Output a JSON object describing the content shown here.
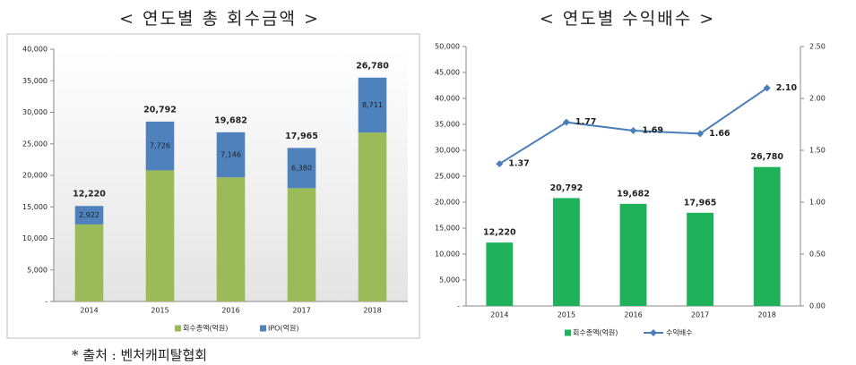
{
  "chart_data": [
    {
      "type": "bar",
      "stacked": true,
      "title": "< 연도별 총 회수금액 >",
      "categories": [
        "2014",
        "2015",
        "2016",
        "2017",
        "2018"
      ],
      "series": [
        {
          "name": "회수총액(억원)",
          "color": "#9bbb59",
          "values": [
            12220,
            20792,
            19682,
            17965,
            26780
          ],
          "value_labels": [
            "12,220",
            "20,792",
            "19,682",
            "17,965",
            "26,780"
          ]
        },
        {
          "name": "IPO(억원)",
          "color": "#4f81bd",
          "values": [
            2922,
            7726,
            7146,
            6380,
            8711
          ],
          "value_labels": [
            "2,922",
            "7,726",
            "7,146",
            "6,380",
            "8,711"
          ]
        }
      ],
      "ylim": [
        0,
        40000
      ],
      "yticks": [
        {
          "value": 0,
          "label": "-"
        },
        {
          "value": 5000,
          "label": "5,000"
        },
        {
          "value": 10000,
          "label": "10,000"
        },
        {
          "value": 15000,
          "label": "15,000"
        },
        {
          "value": 20000,
          "label": "20,000"
        },
        {
          "value": 25000,
          "label": "25,000"
        },
        {
          "value": 30000,
          "label": "30,000"
        },
        {
          "value": 35000,
          "label": "35,000"
        },
        {
          "value": 40000,
          "label": "40,000"
        }
      ],
      "grid": false
    },
    {
      "type": "bar",
      "title": "< 연도별 수익배수 >",
      "categories": [
        "2014",
        "2015",
        "2016",
        "2017",
        "2018"
      ],
      "series": [
        {
          "name": "회수총액(억원)",
          "type": "bar",
          "color": "#1fb25a",
          "values": [
            12220,
            20792,
            19682,
            17965,
            26780
          ],
          "value_labels": [
            "12,220",
            "20,792",
            "19,682",
            "17,965",
            "26,780"
          ]
        },
        {
          "name": "수익배수",
          "type": "line",
          "axis": "y2",
          "color": "#4a7ebb",
          "values": [
            1.37,
            1.77,
            1.69,
            1.66,
            2.1
          ],
          "value_labels": [
            "1.37",
            "1.77",
            "1.69",
            "1.66",
            "2.10"
          ]
        }
      ],
      "ylim": [
        0,
        50000
      ],
      "yticks": [
        {
          "value": 0,
          "label": "-"
        },
        {
          "value": 5000,
          "label": "5,000"
        },
        {
          "value": 10000,
          "label": "10,000"
        },
        {
          "value": 15000,
          "label": "15,000"
        },
        {
          "value": 20000,
          "label": "20,000"
        },
        {
          "value": 25000,
          "label": "25,000"
        },
        {
          "value": 30000,
          "label": "30,000"
        },
        {
          "value": 35000,
          "label": "35,000"
        },
        {
          "value": 40000,
          "label": "40,000"
        },
        {
          "value": 45000,
          "label": "45,000"
        },
        {
          "value": 50000,
          "label": "50,000"
        }
      ],
      "y2lim": [
        0,
        2.5
      ],
      "y2ticks": [
        {
          "value": 0,
          "label": "0.00"
        },
        {
          "value": 0.5,
          "label": "0.50"
        },
        {
          "value": 1,
          "label": "1.00"
        },
        {
          "value": 1.5,
          "label": "1.50"
        },
        {
          "value": 2,
          "label": "2.00"
        },
        {
          "value": 2.5,
          "label": "2.50"
        }
      ],
      "grid": false
    }
  ],
  "source": "* 출처 : 벤처캐피탈협회"
}
